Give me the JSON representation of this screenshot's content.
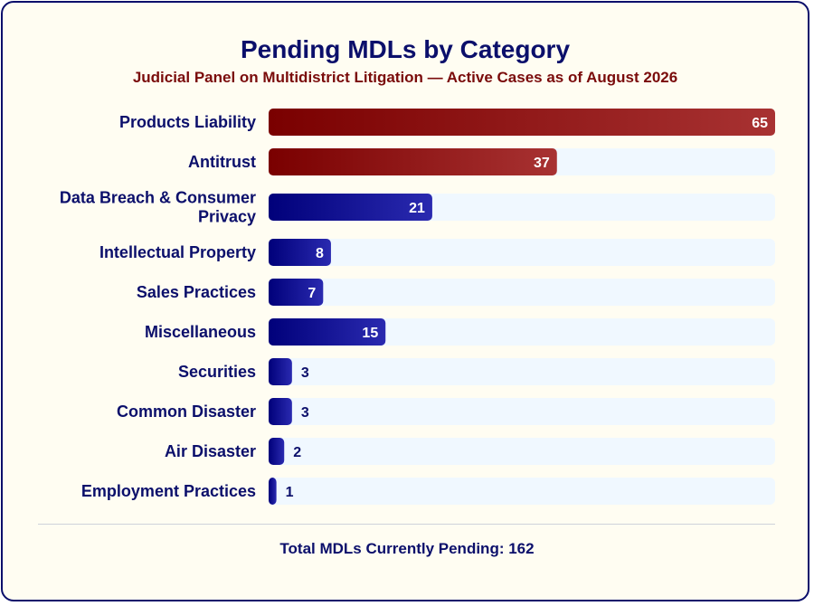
{
  "header": {
    "title": "Pending MDLs by Category",
    "subtitle": "Judicial Panel on Multidistrict Litigation — Active Cases as of August 2026"
  },
  "footer": {
    "total_text": "Total MDLs Currently Pending: 162"
  },
  "colors": {
    "highlight_start": "#7a0000",
    "highlight_end": "#a83232",
    "normal_start": "#00007a",
    "normal_end": "#2a2ab0",
    "track": "#f0f8ff",
    "label": "#0b0f6b",
    "value_inside": "#ffffff",
    "value_outside": "#0b0f6b"
  },
  "chart_data": {
    "type": "bar",
    "orientation": "horizontal",
    "title": "Pending MDLs by Category",
    "subtitle": "Judicial Panel on Multidistrict Litigation — Active Cases as of August 2026",
    "categories": [
      "Products Liability",
      "Antitrust",
      "Data Breach & Consumer Privacy",
      "Intellectual Property",
      "Sales Practices",
      "Miscellaneous",
      "Securities",
      "Common Disaster",
      "Air Disaster",
      "Employment Practices"
    ],
    "values": [
      65,
      37,
      21,
      8,
      7,
      15,
      3,
      3,
      2,
      1
    ],
    "highlighted": [
      "Products Liability",
      "Antitrust"
    ],
    "xlim": [
      0,
      65
    ],
    "grid": false,
    "legend": "none"
  }
}
